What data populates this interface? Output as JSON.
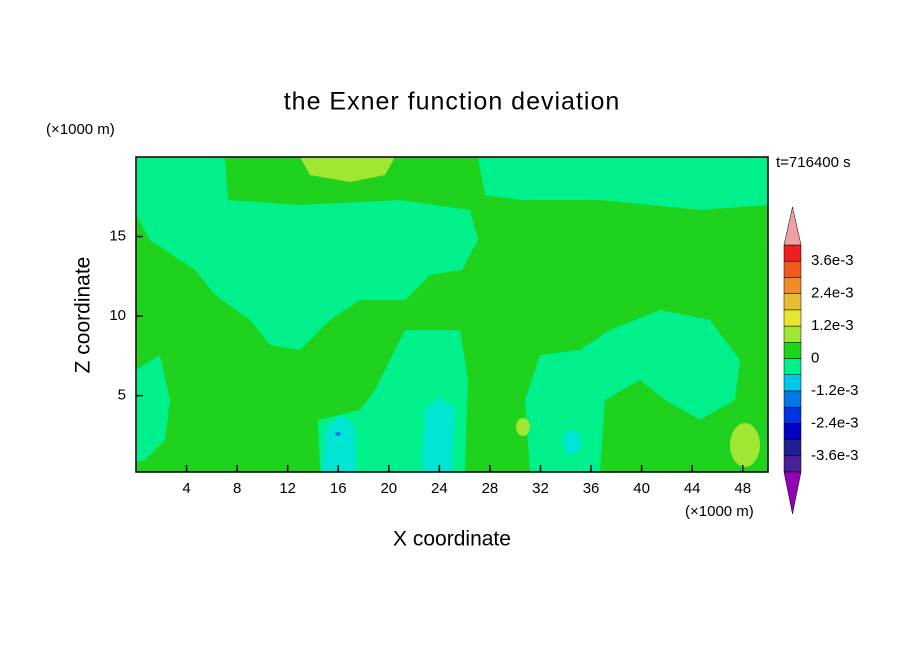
{
  "chart_data": {
    "type": "contour",
    "title": "the Exner function deviation",
    "x_label": "X coordinate",
    "y_label": "Z coordinate",
    "x_unit": "(×1000 m)",
    "y_unit": "(×1000 m)",
    "time_label": "t=716400 s",
    "xlim": [
      0,
      50
    ],
    "ylim": [
      0.2,
      20
    ],
    "xticks": [
      4,
      8,
      12,
      16,
      20,
      24,
      28,
      32,
      36,
      40,
      44,
      48
    ],
    "yticks": [
      5,
      10,
      15
    ],
    "colorbar": {
      "levels": [
        -0.0042,
        -0.0036,
        -0.003,
        -0.0024,
        -0.0018,
        -0.0012,
        -0.0006,
        0,
        0.0006,
        0.0012,
        0.0018,
        0.0024,
        0.003,
        0.0036,
        0.0042
      ],
      "colors": [
        "#4b1e9a",
        "#1e1e96",
        "#0000c8",
        "#0032e6",
        "#0078e6",
        "#00c8e6",
        "#00f08c",
        "#1ed21e",
        "#a0e632",
        "#e6e632",
        "#e6be32",
        "#f08c28",
        "#f05a1e",
        "#f01e1e"
      ],
      "over_color": "#f0a0a0",
      "under_color": "#9600b4",
      "ticks": [
        {
          "value": -0.0036,
          "label": "-3.6e-3"
        },
        {
          "value": -0.0024,
          "label": "-2.4e-3"
        },
        {
          "value": -0.0012,
          "label": "-1.2e-3"
        },
        0,
        {
          "value": 0.0012,
          "label": "1.2e-3"
        },
        {
          "value": 0.0024,
          "label": "2.4e-3"
        },
        {
          "value": 0.0036,
          "label": "3.6e-3"
        }
      ]
    }
  }
}
